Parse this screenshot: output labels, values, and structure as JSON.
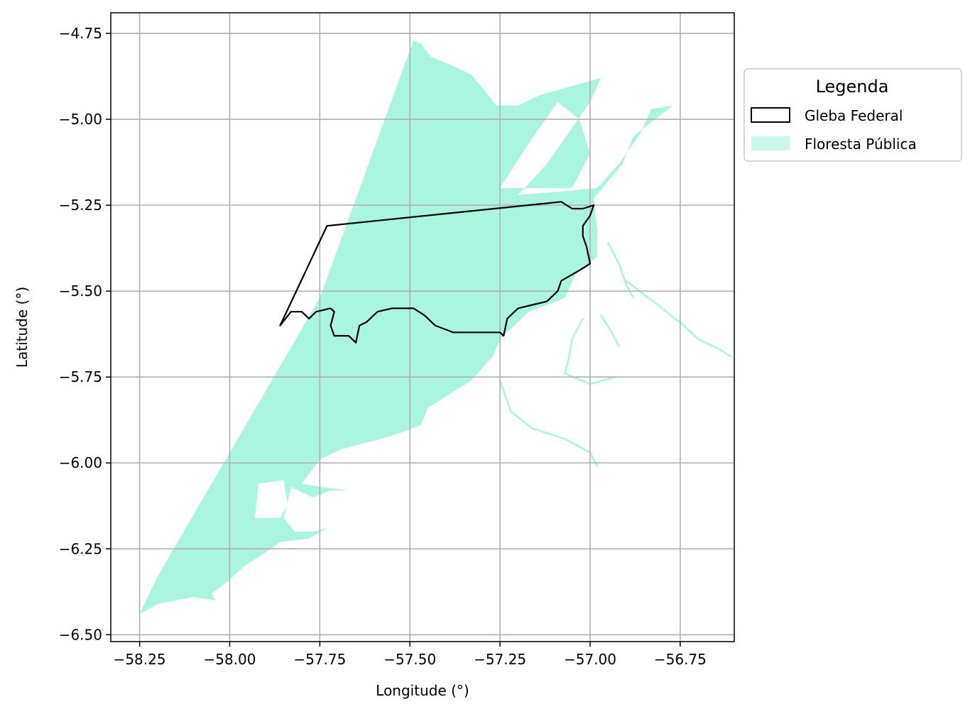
{
  "chart_data": {
    "type": "map",
    "title": "",
    "xlabel": "Longitude (°)",
    "ylabel": "Latitude (°)",
    "xlim": [
      -58.33,
      -56.6
    ],
    "ylim": [
      -6.52,
      -4.69
    ],
    "x_ticks": [
      -58.25,
      -58.0,
      -57.75,
      -57.5,
      -57.25,
      -57.0,
      -56.75
    ],
    "x_tick_labels": [
      "−58.25",
      "−58.00",
      "−57.75",
      "−57.50",
      "−57.25",
      "−57.00",
      "−56.75"
    ],
    "y_ticks": [
      -4.75,
      -5.0,
      -5.25,
      -5.5,
      -5.75,
      -6.0,
      -6.25,
      -6.5
    ],
    "y_tick_labels": [
      "−4.75",
      "−5.00",
      "−5.25",
      "−5.50",
      "−5.75",
      "−6.00",
      "−6.25",
      "−6.50"
    ],
    "grid": true,
    "legend": {
      "title": "Legenda",
      "placement": "outside-right",
      "entries": [
        {
          "label": "Gleba Federal",
          "style": "outline",
          "color": "#000000"
        },
        {
          "label": "Floresta Pública",
          "style": "fill",
          "color": "#aaf5e0"
        }
      ]
    },
    "layers": [
      {
        "name": "Floresta Pública",
        "color": "#aaf5e0",
        "polygons": [
          [
            [
              -57.49,
              -4.77
            ],
            [
              -57.47,
              -4.78
            ],
            [
              -57.44,
              -4.82
            ],
            [
              -57.39,
              -4.84
            ],
            [
              -57.33,
              -4.87
            ],
            [
              -57.29,
              -4.92
            ],
            [
              -57.26,
              -4.96
            ],
            [
              -57.2,
              -4.96
            ],
            [
              -57.14,
              -4.93
            ],
            [
              -57.04,
              -4.9
            ],
            [
              -56.97,
              -4.88
            ],
            [
              -57.0,
              -4.95
            ],
            [
              -57.06,
              -5.04
            ],
            [
              -57.12,
              -5.13
            ],
            [
              -57.2,
              -5.22
            ],
            [
              -57.08,
              -5.21
            ],
            [
              -56.98,
              -5.2
            ],
            [
              -56.92,
              -5.13
            ],
            [
              -56.86,
              -5.04
            ],
            [
              -56.83,
              -4.97
            ],
            [
              -56.77,
              -4.96
            ],
            [
              -56.82,
              -5.0
            ],
            [
              -56.88,
              -5.05
            ],
            [
              -56.91,
              -5.13
            ],
            [
              -56.99,
              -5.23
            ],
            [
              -56.98,
              -5.32
            ],
            [
              -56.98,
              -5.4
            ],
            [
              -57.04,
              -5.45
            ],
            [
              -57.07,
              -5.52
            ],
            [
              -57.17,
              -5.56
            ],
            [
              -57.22,
              -5.61
            ],
            [
              -57.25,
              -5.64
            ],
            [
              -57.27,
              -5.69
            ],
            [
              -57.33,
              -5.76
            ],
            [
              -57.39,
              -5.8
            ],
            [
              -57.45,
              -5.84
            ],
            [
              -57.47,
              -5.89
            ],
            [
              -57.52,
              -5.91
            ],
            [
              -57.58,
              -5.93
            ],
            [
              -57.69,
              -5.96
            ],
            [
              -57.75,
              -5.99
            ],
            [
              -57.8,
              -6.06
            ],
            [
              -57.75,
              -6.07
            ],
            [
              -57.67,
              -6.08
            ],
            [
              -57.72,
              -6.08
            ],
            [
              -57.77,
              -6.1
            ],
            [
              -57.83,
              -6.07
            ],
            [
              -57.85,
              -6.16
            ],
            [
              -57.82,
              -6.2
            ],
            [
              -57.77,
              -6.2
            ],
            [
              -57.73,
              -6.19
            ],
            [
              -57.78,
              -6.22
            ],
            [
              -57.86,
              -6.23
            ],
            [
              -57.9,
              -6.26
            ],
            [
              -57.96,
              -6.3
            ],
            [
              -58.0,
              -6.34
            ],
            [
              -58.05,
              -6.38
            ],
            [
              -58.04,
              -6.4
            ],
            [
              -58.1,
              -6.39
            ],
            [
              -58.2,
              -6.41
            ],
            [
              -58.25,
              -6.44
            ],
            [
              -58.2,
              -6.33
            ],
            [
              -58.0,
              -5.97
            ],
            [
              -57.75,
              -5.52
            ],
            [
              -57.49,
              -4.77
            ]
          ]
        ],
        "holes": [
          [
            [
              -57.09,
              -4.95
            ],
            [
              -57.17,
              -5.07
            ],
            [
              -57.25,
              -5.2
            ],
            [
              -57.15,
              -5.2
            ],
            [
              -57.05,
              -5.2
            ],
            [
              -57.0,
              -5.1
            ],
            [
              -57.03,
              -5.0
            ],
            [
              -57.09,
              -4.95
            ]
          ],
          [
            [
              -57.92,
              -6.06
            ],
            [
              -57.85,
              -6.05
            ],
            [
              -57.84,
              -6.12
            ],
            [
              -57.86,
              -6.16
            ],
            [
              -57.93,
              -6.16
            ],
            [
              -57.92,
              -6.06
            ]
          ]
        ],
        "streams": [
          [
            [
              -56.95,
              -5.36
            ],
            [
              -56.92,
              -5.42
            ],
            [
              -56.9,
              -5.48
            ],
            [
              -56.88,
              -5.52
            ]
          ],
          [
            [
              -56.9,
              -5.47
            ],
            [
              -56.85,
              -5.51
            ],
            [
              -56.8,
              -5.55
            ],
            [
              -56.74,
              -5.6
            ],
            [
              -56.7,
              -5.64
            ],
            [
              -56.64,
              -5.67
            ],
            [
              -56.61,
              -5.69
            ]
          ],
          [
            [
              -57.02,
              -5.58
            ],
            [
              -57.05,
              -5.64
            ],
            [
              -57.06,
              -5.7
            ],
            [
              -57.07,
              -5.74
            ]
          ],
          [
            [
              -57.07,
              -5.74
            ],
            [
              -57.0,
              -5.77
            ],
            [
              -56.93,
              -5.75
            ]
          ],
          [
            [
              -57.25,
              -5.76
            ],
            [
              -57.22,
              -5.85
            ],
            [
              -57.16,
              -5.9
            ],
            [
              -57.07,
              -5.93
            ],
            [
              -57.0,
              -5.97
            ],
            [
              -56.98,
              -6.01
            ]
          ],
          [
            [
              -56.97,
              -5.57
            ],
            [
              -56.94,
              -5.62
            ],
            [
              -56.92,
              -5.66
            ]
          ]
        ]
      },
      {
        "name": "Gleba Federal",
        "color": "#000000",
        "outline": [
          [
            -57.86,
            -5.6
          ],
          [
            -57.73,
            -5.31
          ],
          [
            -57.08,
            -5.24
          ],
          [
            -57.05,
            -5.26
          ],
          [
            -57.02,
            -5.26
          ],
          [
            -56.99,
            -5.25
          ],
          [
            -57.0,
            -5.28
          ],
          [
            -57.02,
            -5.31
          ],
          [
            -57.02,
            -5.34
          ],
          [
            -57.01,
            -5.37
          ],
          [
            -57.0,
            -5.42
          ],
          [
            -57.03,
            -5.44
          ],
          [
            -57.08,
            -5.47
          ],
          [
            -57.09,
            -5.5
          ],
          [
            -57.12,
            -5.53
          ],
          [
            -57.16,
            -5.54
          ],
          [
            -57.2,
            -5.55
          ],
          [
            -57.23,
            -5.58
          ],
          [
            -57.24,
            -5.63
          ],
          [
            -57.25,
            -5.62
          ],
          [
            -57.32,
            -5.62
          ],
          [
            -57.38,
            -5.62
          ],
          [
            -57.43,
            -5.6
          ],
          [
            -57.46,
            -5.57
          ],
          [
            -57.49,
            -5.55
          ],
          [
            -57.52,
            -5.55
          ],
          [
            -57.55,
            -5.55
          ],
          [
            -57.59,
            -5.56
          ],
          [
            -57.62,
            -5.59
          ],
          [
            -57.64,
            -5.6
          ],
          [
            -57.65,
            -5.65
          ],
          [
            -57.67,
            -5.63
          ],
          [
            -57.71,
            -5.63
          ],
          [
            -57.72,
            -5.6
          ],
          [
            -57.71,
            -5.56
          ],
          [
            -57.72,
            -5.55
          ],
          [
            -57.76,
            -5.56
          ],
          [
            -57.78,
            -5.58
          ],
          [
            -57.8,
            -5.56
          ],
          [
            -57.83,
            -5.56
          ],
          [
            -57.86,
            -5.6
          ]
        ]
      }
    ]
  }
}
